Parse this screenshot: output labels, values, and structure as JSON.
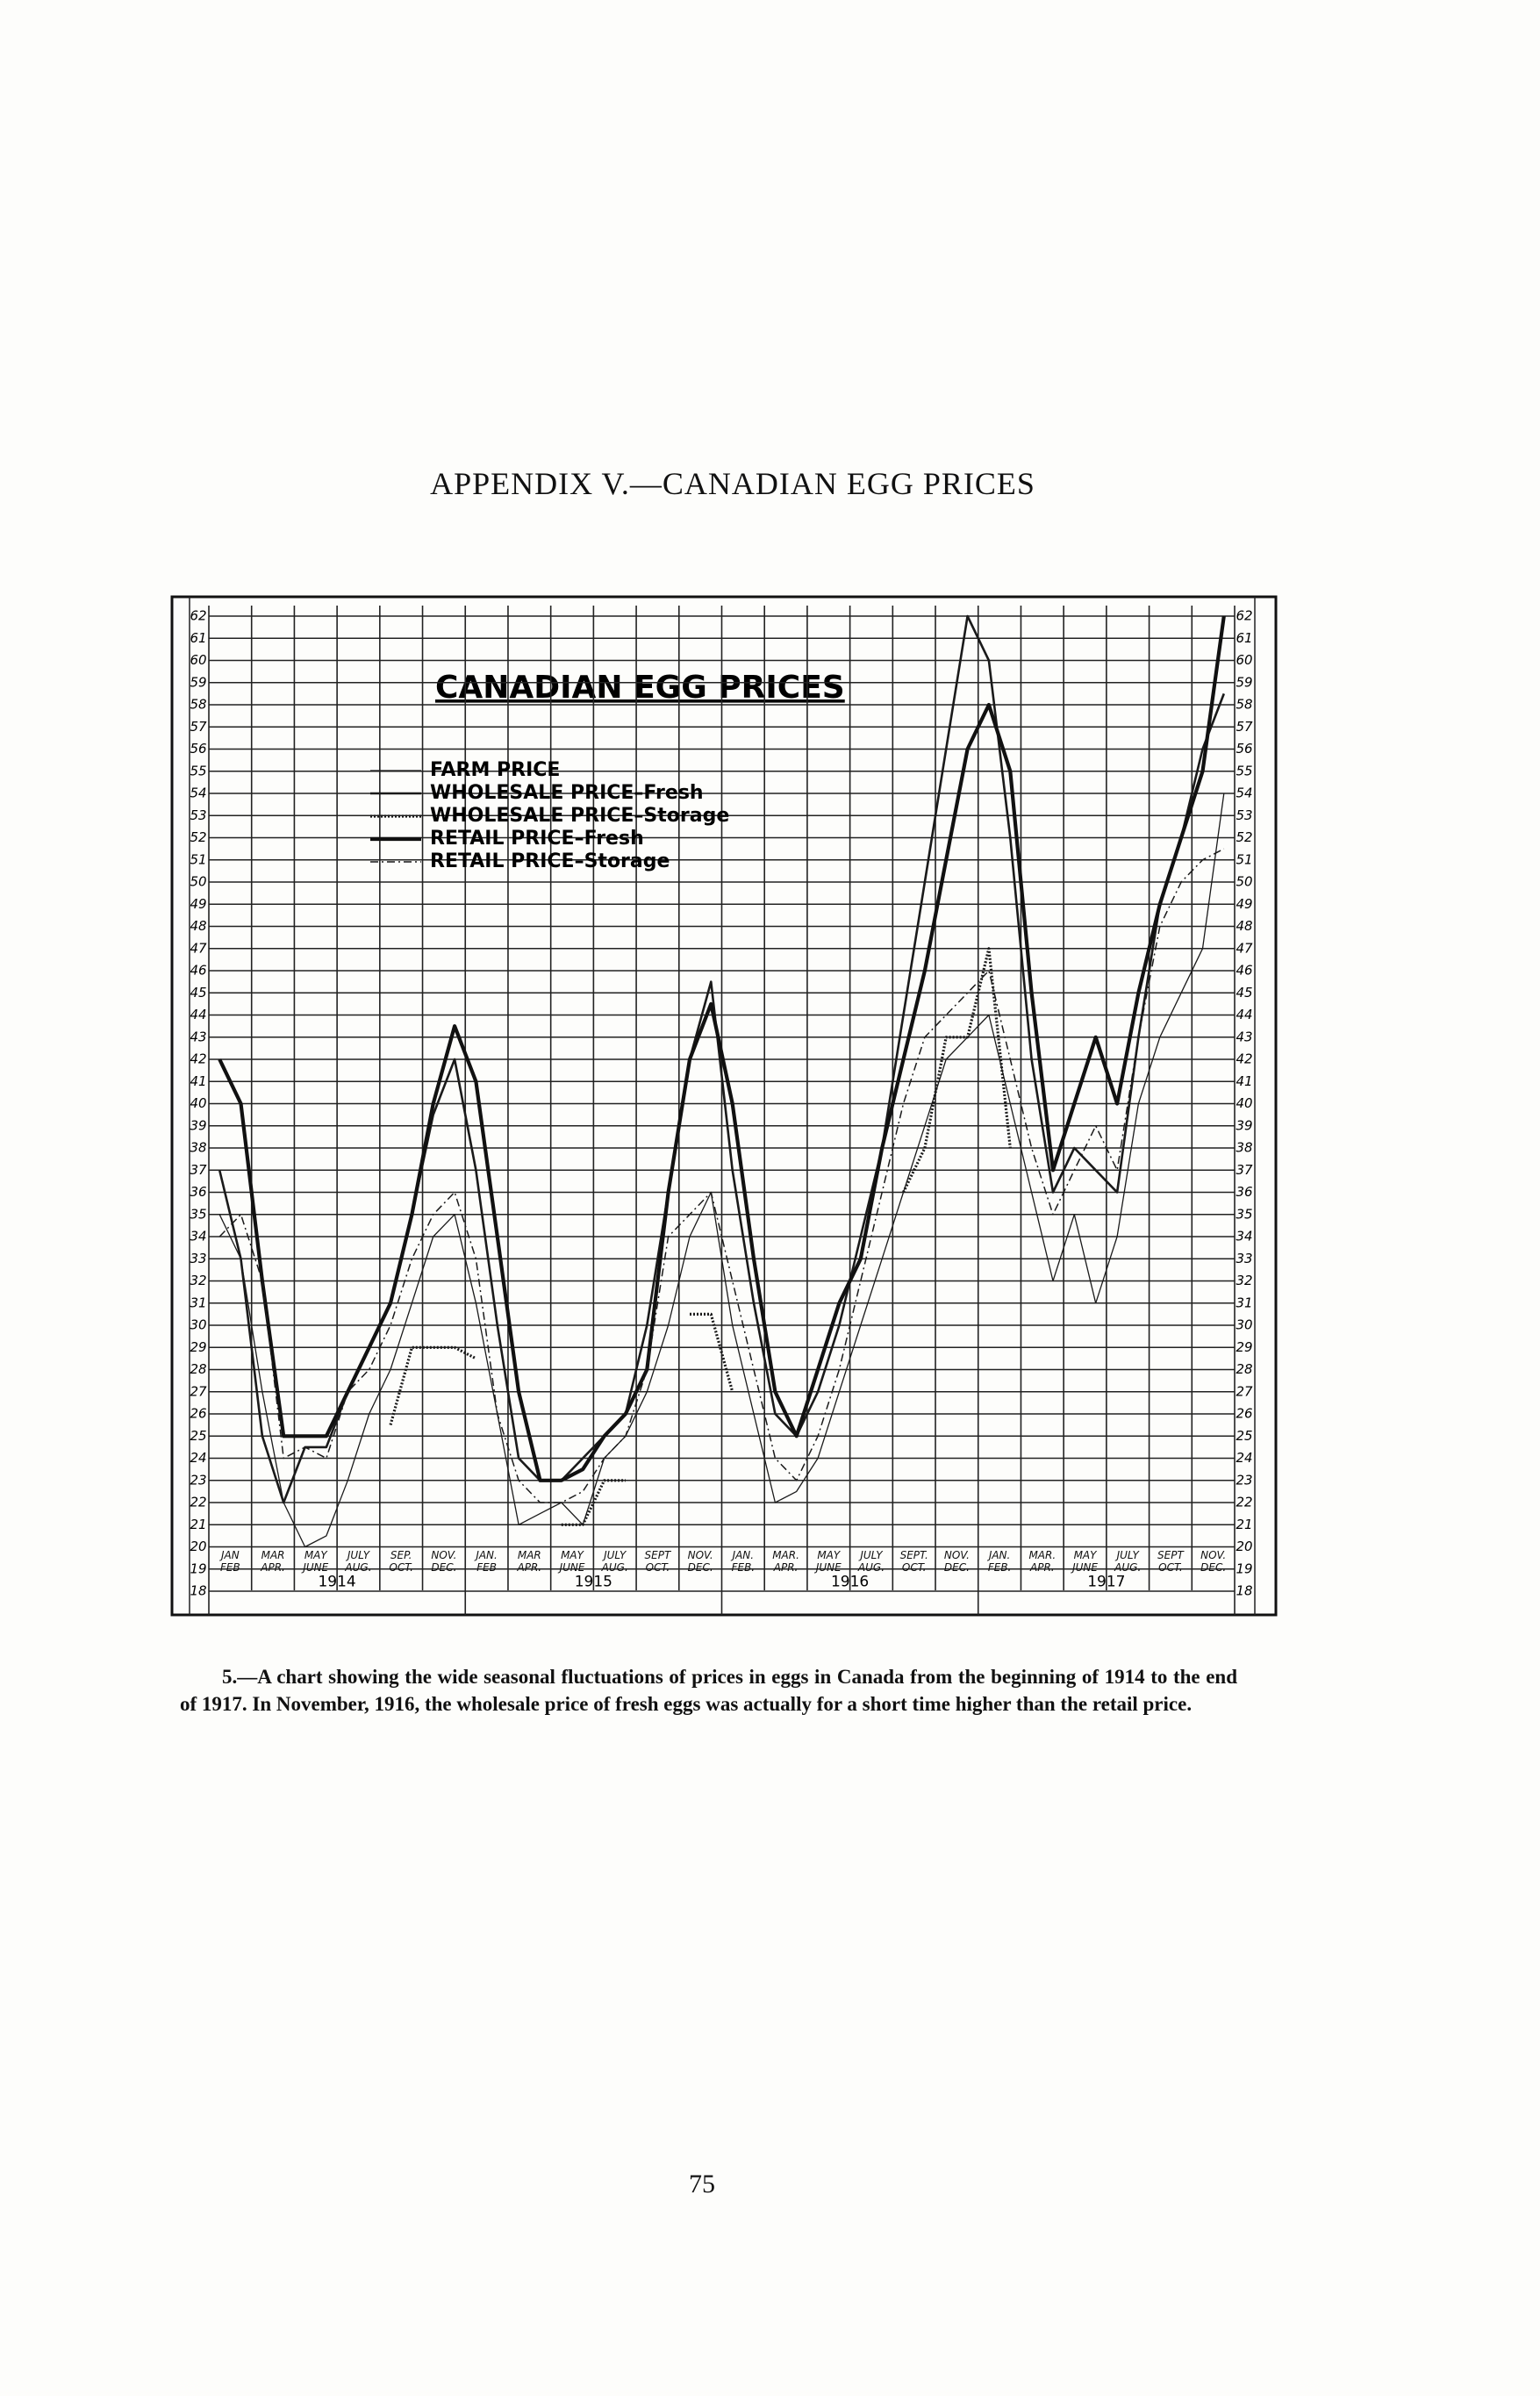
{
  "header": {
    "title": "APPENDIX V.—CANADIAN EGG PRICES"
  },
  "chart_data": {
    "type": "line",
    "title": "CANADIAN EGG PRICES",
    "x": [
      1,
      2,
      3,
      4,
      5,
      6,
      7,
      8,
      9,
      10,
      11,
      12,
      13,
      14,
      15,
      16,
      17,
      18,
      19,
      20,
      21,
      22,
      23,
      24,
      25,
      26,
      27,
      28,
      29,
      30,
      31,
      32,
      33,
      34,
      35,
      36,
      37,
      38,
      39,
      40,
      41,
      42,
      43,
      44,
      45,
      46,
      47,
      48
    ],
    "xlim": [
      0.5,
      48.5
    ],
    "xticks": [
      {
        "value": 1.5,
        "label": "JAN FEB"
      },
      {
        "value": 3.5,
        "label": "MAR APR."
      },
      {
        "value": 5.5,
        "label": "MAY JUNE"
      },
      {
        "value": 7.5,
        "label": "JULY AUG."
      },
      {
        "value": 9.5,
        "label": "SEP. OCT."
      },
      {
        "value": 11.5,
        "label": "NOV. DEC."
      },
      {
        "value": 13.5,
        "label": "JAN. FEB"
      },
      {
        "value": 15.5,
        "label": "MAR APR."
      },
      {
        "value": 17.5,
        "label": "MAY JUNE"
      },
      {
        "value": 19.5,
        "label": "JULY AUG."
      },
      {
        "value": 21.5,
        "label": "SEPT OCT."
      },
      {
        "value": 23.5,
        "label": "NOV. DEC."
      },
      {
        "value": 25.5,
        "label": "JAN. FEB."
      },
      {
        "value": 27.5,
        "label": "MAR. APR."
      },
      {
        "value": 29.5,
        "label": "MAY JUNE"
      },
      {
        "value": 31.5,
        "label": "JULY AUG."
      },
      {
        "value": 33.5,
        "label": "SEPT. OCT."
      },
      {
        "value": 35.5,
        "label": "NOV. DEC."
      },
      {
        "value": 37.5,
        "label": "JAN. FEB."
      },
      {
        "value": 39.5,
        "label": "MAR. APR."
      },
      {
        "value": 41.5,
        "label": "MAY JUNE"
      },
      {
        "value": 43.5,
        "label": "JULY AUG."
      },
      {
        "value": 45.5,
        "label": "SEPT OCT."
      },
      {
        "value": 47.5,
        "label": "NOV. DEC."
      }
    ],
    "years": [
      {
        "value": 6.5,
        "label": "1914"
      },
      {
        "value": 18.5,
        "label": "1915"
      },
      {
        "value": 30.5,
        "label": "1916"
      },
      {
        "value": 42.5,
        "label": "1917"
      }
    ],
    "ylim": [
      18,
      62
    ],
    "yticks": [
      18,
      19,
      20,
      21,
      22,
      23,
      24,
      25,
      26,
      27,
      28,
      29,
      30,
      31,
      32,
      33,
      34,
      35,
      36,
      37,
      38,
      39,
      40,
      41,
      42,
      43,
      44,
      45,
      46,
      47,
      48,
      49,
      50,
      51,
      52,
      53,
      54,
      55,
      56,
      57,
      58,
      59,
      60,
      61,
      62
    ],
    "grid": true,
    "series": [
      {
        "name": "FARM PRICE",
        "color": "#1a1a1a",
        "line_style": "thin",
        "values": [
          35,
          33,
          27,
          22,
          20,
          20.5,
          23,
          26,
          28,
          31,
          34,
          35,
          31,
          26,
          21,
          21.5,
          22,
          21,
          24,
          25,
          27,
          30,
          34,
          36,
          30,
          26,
          22,
          22.5,
          24,
          27,
          30,
          33,
          36,
          39,
          42,
          43,
          44,
          40,
          36,
          32,
          35,
          31,
          34,
          40,
          43,
          45,
          47,
          54
        ]
      },
      {
        "name": "WHOLESALE PRICE–Fresh",
        "color": "#1a1a1a",
        "line_style": "medium",
        "values": [
          37,
          33,
          25,
          22,
          24.5,
          24.5,
          27,
          29,
          31,
          35,
          39.5,
          42,
          37,
          30,
          24,
          23,
          23,
          24,
          25,
          26,
          30,
          36,
          42,
          45.5,
          37,
          31,
          26,
          25,
          27,
          30,
          34,
          38,
          44,
          50,
          56,
          62,
          60,
          52,
          42,
          36,
          38,
          37,
          36,
          43,
          49,
          52,
          56,
          58.5
        ]
      },
      {
        "name": "WHOLESALE PRICE–Storage",
        "color": "#1a1a1a",
        "line_style": "dotted",
        "values": [
          null,
          null,
          null,
          null,
          null,
          null,
          null,
          null,
          25.5,
          29,
          29,
          29,
          28.5,
          null,
          null,
          null,
          21,
          21,
          23,
          23,
          null,
          null,
          30.5,
          30.5,
          27,
          null,
          null,
          null,
          null,
          null,
          null,
          null,
          36,
          38,
          43,
          43,
          47,
          38,
          null,
          null,
          null,
          null,
          null,
          null,
          null,
          null,
          null,
          null
        ]
      },
      {
        "name": "RETAIL PRICE–Fresh",
        "color": "#111111",
        "line_style": "thick",
        "values": [
          42,
          40,
          32,
          25,
          25,
          25,
          27,
          29,
          31,
          35,
          40,
          43.5,
          41,
          34,
          27,
          23,
          23,
          23.5,
          25,
          26,
          28,
          36,
          42,
          44.5,
          40,
          33,
          27,
          25,
          28,
          31,
          33,
          38,
          42,
          46,
          51,
          56,
          58,
          55,
          45,
          37,
          40,
          43,
          40,
          45,
          49,
          52,
          55,
          62
        ]
      },
      {
        "name": "RETAIL PRICE–Storage",
        "color": "#1a1a1a",
        "line_style": "dash-dot",
        "values": [
          34,
          35,
          32,
          24,
          24.5,
          24,
          27,
          28,
          30,
          33,
          35,
          36,
          33,
          26,
          23,
          22,
          22,
          22.5,
          24,
          25,
          28,
          34,
          35,
          36,
          32,
          28,
          24,
          23,
          25,
          28,
          32,
          36,
          40,
          43,
          44,
          45,
          46,
          42,
          38,
          35,
          37,
          39,
          37,
          43,
          48,
          50,
          51,
          51.5
        ]
      }
    ]
  },
  "caption": "5.—A chart showing the wide seasonal fluctuations of prices in eggs in Canada from the beginning of 1914 to the end of 1917.  In November, 1916, the wholesale price of fresh eggs was actually for a short time higher than the retail price.",
  "page_number": "75"
}
